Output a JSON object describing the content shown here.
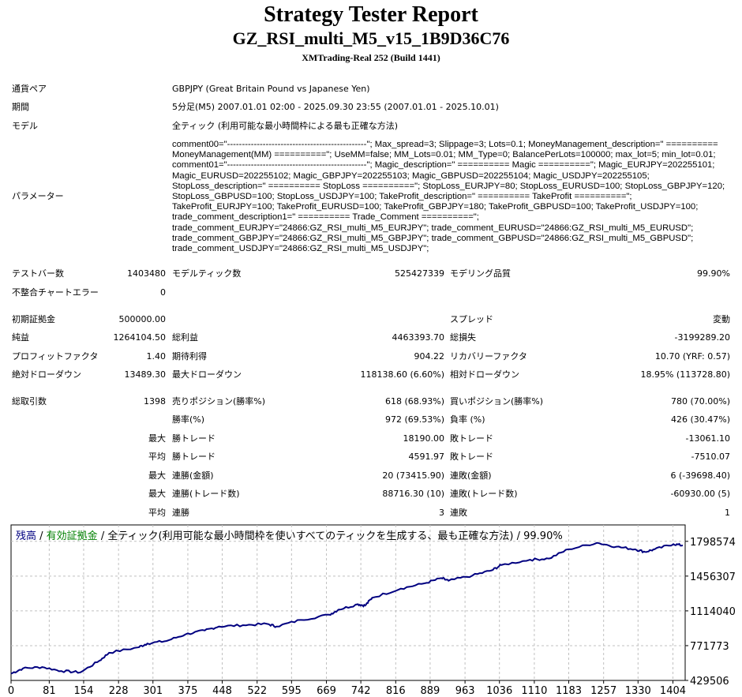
{
  "header": {
    "title": "Strategy Tester Report",
    "expert": "GZ_RSI_multi_M5_v15_1B9D36C76",
    "server": "XMTrading-Real 252 (Build 1441)"
  },
  "info": [
    {
      "label": "通貨ペア",
      "value": "GBPJPY (Great Britain Pound vs Japanese Yen)"
    },
    {
      "label": "期間",
      "value": "5分足(M5) 2007.01.01 02:00 - 2025.09.30 23:55 (2007.01.01 - 2025.10.01)"
    },
    {
      "label": "モデル",
      "value": "全ティック (利用可能な最小時間枠による最も正確な方法)"
    },
    {
      "label": "パラメーター",
      "value": "comment00=\"-----------------------------------------------\"; Max_spread=3; Slippage=3; Lots=0.1; MoneyManagement_description=\" ========== MoneyManagement(MM) ==========\"; UseMM=false; MM_Lots=0.01; MM_Type=0; BalancePerLots=100000; max_lot=5; min_lot=0.01; comment01=\"-----------------------------------------------\"; Magic_description=\" ========== Magic ==========\"; Magic_EURJPY=202255101; Magic_EURUSD=202255102; Magic_GBPJPY=202255103; Magic_GBPUSD=202255104; Magic_USDJPY=202255105; StopLoss_description=\" ========== StopLoss ==========\"; StopLoss_EURJPY=80; StopLoss_EURUSD=100; StopLoss_GBPJPY=120; StopLoss_GBPUSD=100; StopLoss_USDJPY=100; TakeProfit_description=\" ========== TakeProfit ==========\"; TakeProfit_EURJPY=100; TakeProfit_EURUSD=100; TakeProfit_GBPJPY=180; TakeProfit_GBPUSD=100; TakeProfit_USDJPY=100; trade_comment_description1=\" ========== Trade_Comment ==========\"; trade_comment_EURJPY=\"24866:GZ_RSI_multi_M5_EURJPY\"; trade_comment_EURUSD=\"24866:GZ_RSI_multi_M5_EURUSD\"; trade_comment_GBPJPY=\"24866:GZ_RSI_multi_M5_GBPJPY\"; trade_comment_GBPUSD=\"24866:GZ_RSI_multi_M5_GBPUSD\"; trade_comment_USDJPY=\"24866:GZ_RSI_multi_M5_USDJPY\";"
    }
  ],
  "stats": [
    [
      "テストバー数",
      "1403480",
      "モデルティック数",
      "525427339",
      "モデリング品質",
      "99.90%"
    ],
    [
      "不整合チャートエラー",
      "0",
      "",
      "",
      "",
      ""
    ],
    [
      "初期証拠金",
      "500000.00",
      "",
      "",
      "スプレッド",
      "変動"
    ],
    [
      "純益",
      "1264104.50",
      "総利益",
      "4463393.70",
      "総損失",
      "-3199289.20"
    ],
    [
      "プロフィットファクタ",
      "1.40",
      "期待利得",
      "904.22",
      "リカバリーファクタ",
      "10.70 (YRF: 0.57)"
    ],
    [
      "絶対ドローダウン",
      "13489.30",
      "最大ドローダウン",
      "118138.60 (6.60%)",
      "相対ドローダウン",
      "18.95% (113728.80)"
    ],
    [
      "総取引数",
      "1398",
      "売りポジション(勝率%)",
      "618 (68.93%)",
      "買いポジション(勝率%)",
      "780 (70.00%)"
    ],
    [
      "",
      "",
      "勝率(%)",
      "972 (69.53%)",
      "負率 (%)",
      "426 (30.47%)"
    ],
    [
      "",
      "最大",
      "勝トレード",
      "18190.00",
      "敗トレード",
      "-13061.10"
    ],
    [
      "",
      "平均",
      "勝トレード",
      "4591.97",
      "敗トレード",
      "-7510.07"
    ],
    [
      "",
      "最大",
      "連勝(金額)",
      "20 (73415.90)",
      "連敗(金額)",
      "6 (-39698.40)"
    ],
    [
      "",
      "最大",
      "連勝(トレード数)",
      "88716.30 (10)",
      "連敗(トレード数)",
      "-60930.00 (5)"
    ],
    [
      "",
      "平均",
      "連勝",
      "3",
      "連敗",
      "1"
    ]
  ],
  "chart_data": {
    "type": "line",
    "legend": {
      "balance": "残高",
      "sep1": " / ",
      "equity": "有効証拠金",
      "rest": " / 全ティック(利用可能な最小時間枠を使いすべてのティックを生成する、最も正確な方法) / 99.90%"
    },
    "x_ticks": [
      0,
      81,
      154,
      228,
      301,
      375,
      448,
      522,
      595,
      669,
      742,
      816,
      889,
      963,
      1036,
      1110,
      1183,
      1257,
      1330,
      1404
    ],
    "y_ticks": [
      429506,
      771773,
      1114040,
      1456307,
      1798574
    ],
    "ylim": [
      429506,
      1960000
    ],
    "xlim": [
      0,
      1430
    ],
    "colors": {
      "line": "#000080",
      "balance": "#000080",
      "equity": "#008000",
      "grid": "#c0c0c0"
    },
    "series": [
      {
        "name": "残高",
        "x": [
          0,
          25,
          66,
          107,
          147,
          188,
          208,
          269,
          289,
          330,
          370,
          411,
          441,
          492,
          543,
          563,
          614,
          675,
          695,
          736,
          751,
          766,
          827,
          877,
          913,
          928,
          979,
          1020,
          1040,
          1101,
          1141,
          1182,
          1243,
          1284,
          1324,
          1345,
          1365,
          1405,
          1425
        ],
        "y": [
          496700,
          547700,
          560900,
          522200,
          509100,
          625000,
          702200,
          754000,
          792600,
          818300,
          883000,
          921600,
          960200,
          973000,
          985800,
          960200,
          1024400,
          1076000,
          1127200,
          1178900,
          1165900,
          1243000,
          1333400,
          1385200,
          1436200,
          1410700,
          1462500,
          1513500,
          1565200,
          1617000,
          1629400,
          1719700,
          1784000,
          1745300,
          1719700,
          1694200,
          1719700,
          1771600,
          1758400
        ]
      }
    ]
  }
}
